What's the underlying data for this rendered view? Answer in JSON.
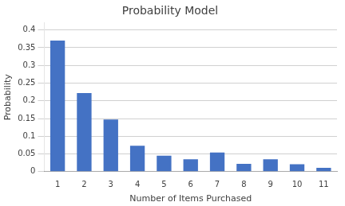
{
  "chart_data": {
    "type": "bar",
    "title": "Probability Model",
    "xlabel": "Number of Items Purchased",
    "ylabel": "Probability",
    "categories": [
      1,
      2,
      3,
      4,
      5,
      6,
      7,
      8,
      9,
      10,
      11
    ],
    "values": [
      0.37,
      0.222,
      0.147,
      0.073,
      0.045,
      0.035,
      0.054,
      0.022,
      0.035,
      0.021,
      0.011
    ],
    "color": "#4472C4",
    "ylim": [
      0,
      0.42
    ],
    "yticks": [
      0,
      0.05,
      0.1,
      0.15,
      0.2,
      0.25,
      0.3,
      0.35,
      0.4
    ],
    "grid": true
  }
}
